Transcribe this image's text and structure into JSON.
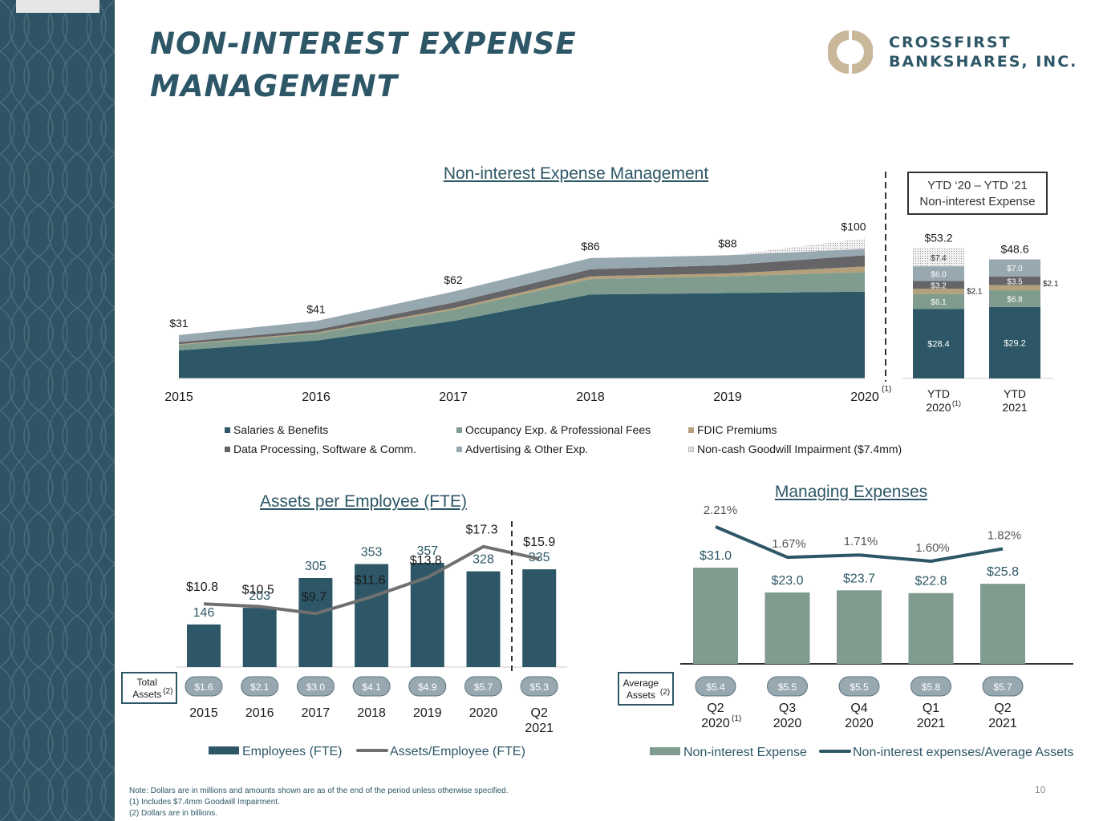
{
  "title": "NON-INTEREST EXPENSE MANAGEMENT",
  "logo": {
    "line1": "CROSSFIRST",
    "line2": "BANKSHARES, INC."
  },
  "colors": {
    "salaries": "#2d5767",
    "occupancy": "#7f9c8f",
    "fdic": "#b4a07a",
    "data_processing": "#656568",
    "advertising": "#98a8b0",
    "goodwill": "#d9dcdc",
    "line_gray": "#707070"
  },
  "page_number": "10",
  "notes": [
    "Note: Dollars are in millions and amounts shown are as of the end of the period unless otherwise specified.",
    "(1)      Includes $7.4mm Goodwill Impairment.",
    "(2)      Dollars are in billions."
  ],
  "chart_data": [
    {
      "type": "area",
      "title": "Non-interest Expense Management",
      "x": [
        "2015",
        "2016",
        "2017",
        "2018",
        "2019",
        "2020"
      ],
      "x_last_sup": "(1)",
      "totals": [
        "$31",
        "$41",
        "$62",
        "$86",
        "$88",
        "$100"
      ],
      "ylim": [
        0,
        110
      ],
      "series": [
        {
          "name": "Salaries & Benefits",
          "values": [
            20,
            27,
            41,
            60,
            61,
            62
          ]
        },
        {
          "name": "Occupancy Exp. & Professional Fees",
          "values": [
            4,
            5,
            8,
            11,
            12,
            14
          ]
        },
        {
          "name": "FDIC Premiums",
          "values": [
            0.5,
            0.8,
            1.2,
            2,
            2,
            4
          ]
        },
        {
          "name": "Data Processing, Software & Comm.",
          "values": [
            1.5,
            2,
            4,
            5,
            6,
            8
          ]
        },
        {
          "name": "Advertising & Other Exp.",
          "values": [
            5,
            6.2,
            7.8,
            8,
            7,
            4.6
          ]
        },
        {
          "name": "Non-cash Goodwill Impairment ($7.4mm)",
          "values": [
            0,
            0,
            0,
            0,
            0,
            7.4
          ]
        }
      ]
    },
    {
      "type": "bar",
      "title": "YTD '20 – YTD '21 Non-interest Expense",
      "box_line1": "YTD ‘20 – YTD ‘21",
      "box_line2": "Non-interest Expense",
      "categories": [
        {
          "line1": "YTD",
          "line2": "2020",
          "sup": "(1)"
        },
        {
          "line1": "YTD",
          "line2": "2021",
          "sup": ""
        }
      ],
      "totals": [
        "$53.2",
        "$48.6"
      ],
      "fdic_labels": [
        "$2.1",
        "$2.1"
      ],
      "ylim": [
        0,
        55
      ],
      "series": [
        {
          "name": "Salaries & Benefits",
          "values": [
            28.4,
            29.2
          ],
          "labels": [
            "$28.4",
            "$29.2"
          ]
        },
        {
          "name": "Occupancy Exp. & Professional Fees",
          "values": [
            6.1,
            6.8
          ],
          "labels": [
            "$6.1",
            "$6.8"
          ]
        },
        {
          "name": "FDIC Premiums",
          "values": [
            2.1,
            2.1
          ],
          "labels": [
            "",
            ""
          ]
        },
        {
          "name": "Data Processing, Software & Comm.",
          "values": [
            3.2,
            3.5
          ],
          "labels": [
            "$3.2",
            "$3.5"
          ]
        },
        {
          "name": "Advertising & Other Exp.",
          "values": [
            6.0,
            7.0
          ],
          "labels": [
            "$6.0",
            "$7.0"
          ]
        },
        {
          "name": "Non-cash Goodwill Impairment ($7.4mm)",
          "values": [
            7.4,
            0
          ],
          "labels": [
            "$7.4",
            ""
          ]
        }
      ]
    },
    {
      "type": "bar",
      "title": "Assets per Employee (FTE)",
      "categories": [
        "2015",
        "2016",
        "2017",
        "2018",
        "2019",
        "2020",
        "Q2 2021"
      ],
      "employees": [
        146,
        203,
        305,
        353,
        357,
        328,
        335
      ],
      "assets_per_employee": [
        10.8,
        10.5,
        9.7,
        11.6,
        13.8,
        17.3,
        15.9
      ],
      "ape_labels": [
        "$10.8",
        "$10.5",
        "$9.7",
        "$11.6",
        "$13.8",
        "$17.3",
        "$15.9"
      ],
      "total_assets": [
        "$1.6",
        "$2.1",
        "$3.0",
        "$4.1",
        "$4.9",
        "$5.7",
        "$5.3"
      ],
      "total_assets_label": "Total Assets",
      "total_assets_sup": "(2)",
      "legend": [
        "Employees (FTE)",
        "Assets/Employee (FTE)"
      ],
      "ylim_bars": [
        0,
        500
      ],
      "ylim_line": [
        0,
        20
      ]
    },
    {
      "type": "bar",
      "title": "Managing Expenses",
      "categories": [
        {
          "line1": "Q2",
          "line2": "2020",
          "sup": "(1)"
        },
        {
          "line1": "Q3",
          "line2": "2020",
          "sup": ""
        },
        {
          "line1": "Q4",
          "line2": "2020",
          "sup": ""
        },
        {
          "line1": "Q1",
          "line2": "2021",
          "sup": ""
        },
        {
          "line1": "Q2",
          "line2": "2021",
          "sup": ""
        }
      ],
      "expenses": [
        31.0,
        23.0,
        23.7,
        22.8,
        25.8
      ],
      "expense_labels": [
        "$31.0",
        "$23.0",
        "$23.7",
        "$22.8",
        "$25.8"
      ],
      "ratio": [
        2.21,
        1.67,
        1.71,
        1.6,
        1.82
      ],
      "ratio_labels": [
        "2.21%",
        "1.67%",
        "1.71%",
        "1.60%",
        "1.82%"
      ],
      "average_assets": [
        "$5.4",
        "$5.5",
        "$5.5",
        "$5.8",
        "$5.7"
      ],
      "average_assets_label": "Average Assets",
      "average_assets_sup": "(2)",
      "legend": [
        "Non-interest Expense",
        "Non-interest expenses/Average Assets"
      ],
      "ylim_bars": [
        0,
        40
      ],
      "ylim_line": [
        1.0,
        2.4
      ]
    }
  ]
}
